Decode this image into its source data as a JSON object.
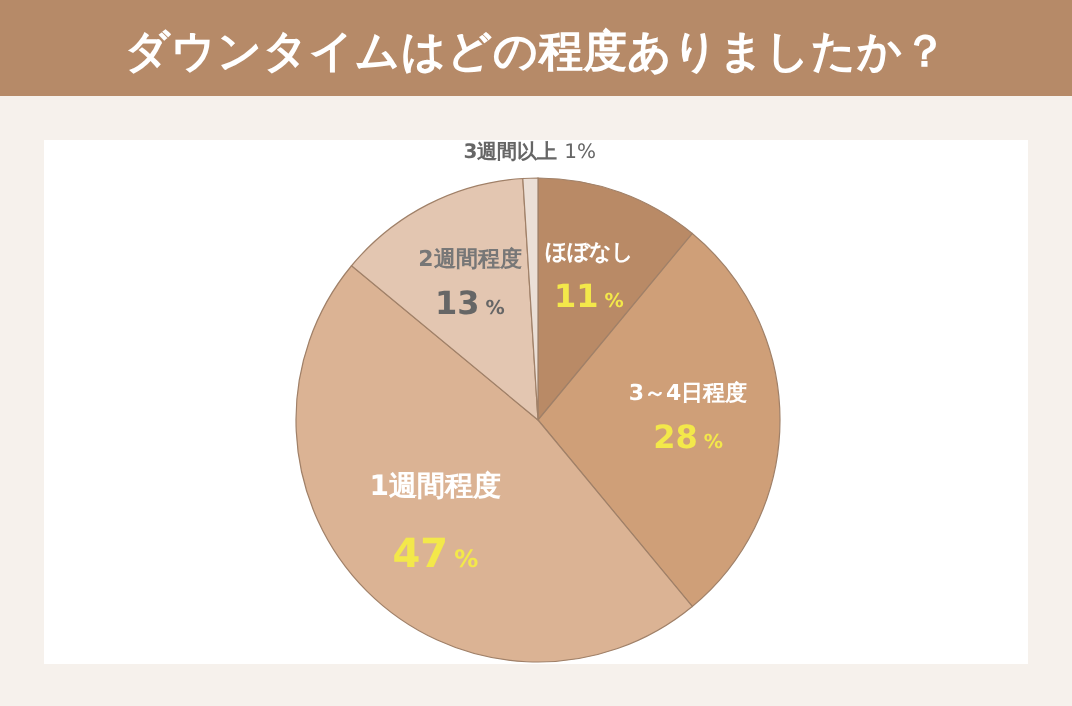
{
  "chart_data": {
    "type": "pie",
    "title": "ダウンタイムはどの程度ありましたか？",
    "categories": [
      "ほぼなし",
      "3～4日程度",
      "1週間程度",
      "2週間程度",
      "3週間以上"
    ],
    "values": [
      11,
      28,
      47,
      13,
      1
    ],
    "value_labels": [
      "11%",
      "28%",
      "47%",
      "13%",
      "1%"
    ],
    "colors": [
      "#b98a66",
      "#cf9f78",
      "#dbb394",
      "#e3c6b1",
      "#ebdfd6"
    ],
    "legend": false
  }
}
